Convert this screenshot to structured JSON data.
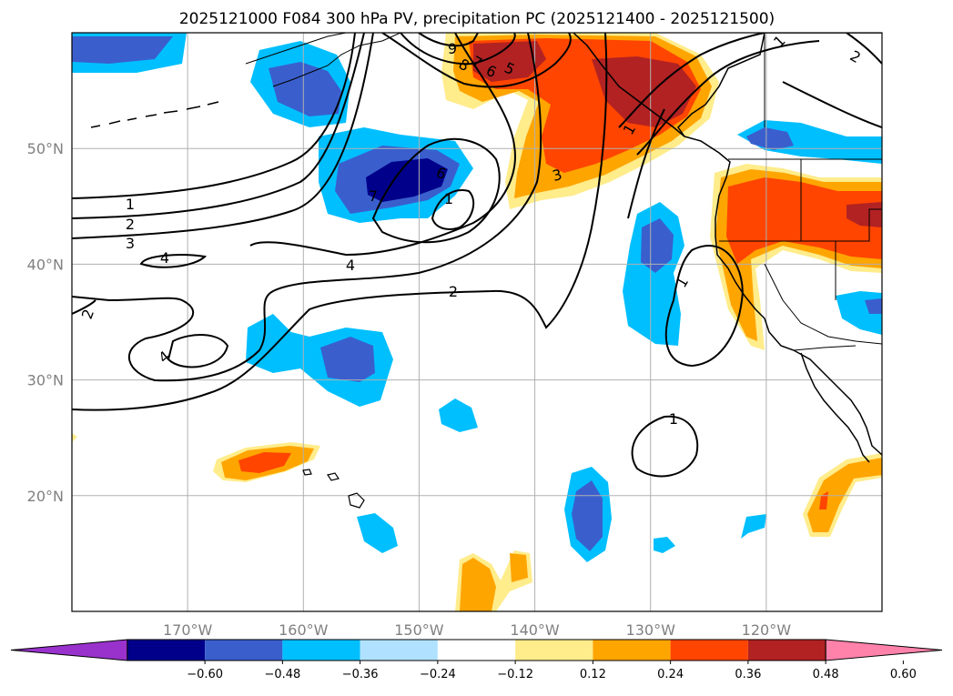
{
  "figure": {
    "title": "2025121000 F084 300 hPa PV, precipitation PC (2025121400 - 2025121500)"
  },
  "map": {
    "projection": "lat-lon",
    "lon_range": [
      -180,
      -110
    ],
    "lat_range": [
      10,
      60
    ],
    "latitude_labels": [
      {
        "lat": 50,
        "text": "50°N"
      },
      {
        "lat": 40,
        "text": "40°N"
      },
      {
        "lat": 30,
        "text": "30°N"
      },
      {
        "lat": 20,
        "text": "20°N"
      }
    ],
    "longitude_labels": [
      {
        "lon": -170,
        "text": "170°W"
      },
      {
        "lon": -160,
        "text": "160°W"
      },
      {
        "lon": -150,
        "text": "150°W"
      },
      {
        "lon": -140,
        "text": "140°W"
      },
      {
        "lon": -130,
        "text": "130°W"
      },
      {
        "lon": -120,
        "text": "120°W"
      }
    ],
    "contour_labels": [
      "1",
      "2",
      "3",
      "4",
      "4",
      "2",
      "4",
      "9",
      "8",
      "7",
      "6",
      "5",
      "6",
      "7",
      "1",
      "3",
      "1",
      "1",
      "1",
      "2",
      "1",
      "2"
    ]
  },
  "colorbar": {
    "ticks": [
      "−0.60",
      "−0.48",
      "−0.36",
      "−0.24",
      "−0.12",
      "0.12",
      "0.24",
      "0.36",
      "0.48",
      "0.60"
    ],
    "colors": [
      "#9932cc",
      "#00008b",
      "#3a5fcd",
      "#00bfff",
      "#b0e2ff",
      "#ffffff",
      "#ffec8b",
      "#ffa500",
      "#ff4500",
      "#b22222",
      "#ff82ab"
    ]
  },
  "colors": {
    "neg_strong": "#00008b",
    "neg_mid": "#3a5fcd",
    "neg_light": "#00bfff",
    "neg_faint": "#b0e2ff",
    "pos_faint": "#ffec8b",
    "pos_light": "#ffa500",
    "pos_mid": "#ff4500",
    "pos_strong": "#b22222"
  }
}
